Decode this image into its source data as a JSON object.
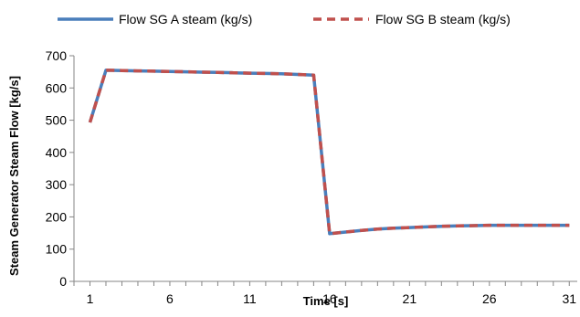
{
  "chart_data": {
    "type": "line",
    "title": "",
    "xlabel": "Time [s]",
    "ylabel": "Steam Generator Steam Flow [kg/s]",
    "xlim": [
      0,
      31.5
    ],
    "ylim": [
      0,
      700
    ],
    "x_ticks": [
      1,
      6,
      11,
      16,
      21,
      26,
      31
    ],
    "y_ticks": [
      0,
      100,
      200,
      300,
      400,
      500,
      600,
      700
    ],
    "grid": false,
    "legend_position": "top",
    "series": [
      {
        "name": "Flow SG A steam (kg/s)",
        "color": "#4A7EBB",
        "dash": "solid",
        "x": [
          1,
          2,
          3,
          4,
          5,
          6,
          7,
          8,
          9,
          10,
          11,
          12,
          13,
          14,
          15,
          16,
          17,
          18,
          19,
          20,
          21,
          22,
          23,
          24,
          25,
          26,
          27,
          28,
          29,
          30,
          31
        ],
        "y": [
          493,
          655,
          654,
          653,
          652,
          651,
          650,
          649,
          648,
          647,
          646,
          645,
          644,
          642,
          640,
          148,
          153,
          158,
          162,
          165,
          167,
          169,
          171,
          172,
          173,
          174,
          174,
          174,
          174,
          174,
          174
        ]
      },
      {
        "name": "Flow SG B steam (kg/s)",
        "color": "#C0504D",
        "dash": "dashed",
        "x": [
          1,
          2,
          3,
          4,
          5,
          6,
          7,
          8,
          9,
          10,
          11,
          12,
          13,
          14,
          15,
          16,
          17,
          18,
          19,
          20,
          21,
          22,
          23,
          24,
          25,
          26,
          27,
          28,
          29,
          30,
          31
        ],
        "y": [
          493,
          655,
          654,
          653,
          652,
          651,
          650,
          649,
          648,
          647,
          646,
          645,
          644,
          642,
          640,
          148,
          153,
          158,
          162,
          165,
          167,
          169,
          171,
          172,
          173,
          174,
          174,
          174,
          174,
          174,
          174
        ]
      }
    ]
  }
}
